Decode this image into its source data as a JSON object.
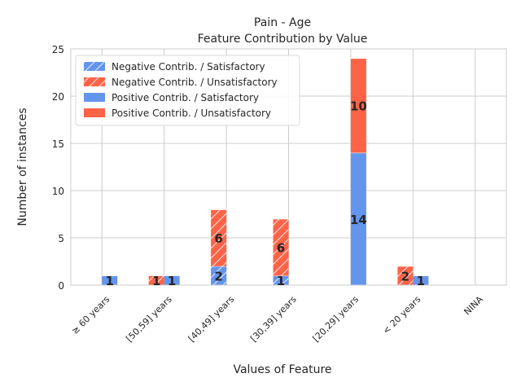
{
  "chart_data": {
    "type": "bar",
    "title": "Pain - Age",
    "subtitle": "Feature Contribution by Value",
    "xlabel": "Values of Feature",
    "ylabel": "Number of instances",
    "ylim": [
      0,
      25
    ],
    "yticks": [
      0,
      5,
      10,
      15,
      20,
      25
    ],
    "grid": true,
    "legend_position": "top-left",
    "categories": [
      "≥ 60 years",
      "[50,59] years",
      "[40,49] years",
      "[30,39] years",
      "[20,29] years",
      "< 20 years",
      "NINA"
    ],
    "colors": {
      "satisfactory": "#6495ED",
      "unsatisfactory": "#FF6347"
    },
    "series": [
      {
        "name": "Negative Contrib. / Satisfactory",
        "group": "negative",
        "class": "satisfactory",
        "hatched": true,
        "values": [
          0,
          0,
          2,
          1,
          0,
          0,
          0
        ]
      },
      {
        "name": "Negative Contrib. / Unsatisfactory",
        "group": "negative",
        "class": "unsatisfactory",
        "hatched": true,
        "values": [
          0,
          1,
          6,
          6,
          0,
          2,
          0
        ]
      },
      {
        "name": "Positive Contrib. / Satisfactory",
        "group": "positive",
        "class": "satisfactory",
        "hatched": false,
        "values": [
          1,
          1,
          0,
          0,
          14,
          1,
          0
        ]
      },
      {
        "name": "Positive Contrib. / Unsatisfactory",
        "group": "positive",
        "class": "unsatisfactory",
        "hatched": false,
        "values": [
          0,
          0,
          0,
          0,
          10,
          0,
          0
        ]
      }
    ]
  }
}
